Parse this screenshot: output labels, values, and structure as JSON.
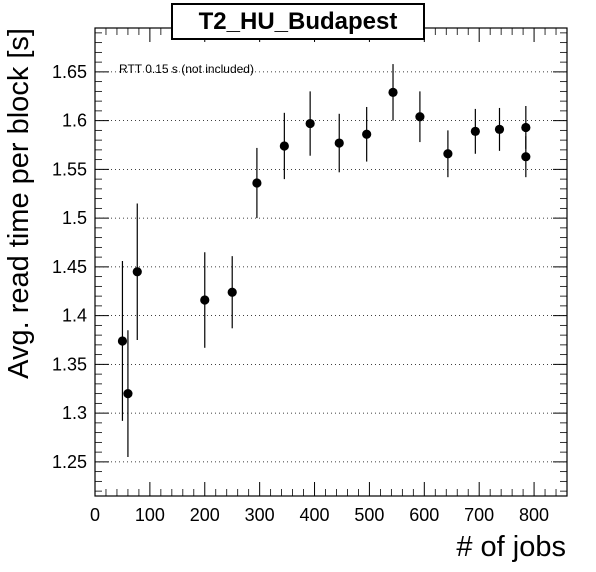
{
  "chart_data": {
    "type": "scatter",
    "title": "T2_HU_Budapest",
    "xlabel": "# of jobs",
    "ylabel": "Avg. read time per block [s]",
    "annotation": "RTT 0.15 s (not included)",
    "xlim": [
      0,
      860
    ],
    "ylim": [
      1.215,
      1.695
    ],
    "x_ticks": [
      0,
      100,
      200,
      300,
      400,
      500,
      600,
      700,
      800
    ],
    "y_ticks": [
      1.25,
      1.3,
      1.35,
      1.4,
      1.45,
      1.5,
      1.55,
      1.6,
      1.65
    ],
    "y_tick_labels": [
      "1.25",
      "1.3",
      "1.35",
      "1.4",
      "1.45",
      "1.5",
      "1.55",
      "1.6",
      "1.65"
    ],
    "grid": {
      "x": false,
      "y": true,
      "style": "dotted"
    },
    "points": [
      {
        "x": 50,
        "y": 1.374,
        "err": 0.082
      },
      {
        "x": 60,
        "y": 1.32,
        "err": 0.065
      },
      {
        "x": 77,
        "y": 1.445,
        "err": 0.07
      },
      {
        "x": 200,
        "y": 1.416,
        "err": 0.049
      },
      {
        "x": 250,
        "y": 1.424,
        "err": 0.037
      },
      {
        "x": 295,
        "y": 1.536,
        "err": 0.036
      },
      {
        "x": 345,
        "y": 1.574,
        "err": 0.034
      },
      {
        "x": 392,
        "y": 1.597,
        "err": 0.033
      },
      {
        "x": 445,
        "y": 1.577,
        "err": 0.03
      },
      {
        "x": 495,
        "y": 1.586,
        "err": 0.028
      },
      {
        "x": 543,
        "y": 1.629,
        "err": 0.029
      },
      {
        "x": 592,
        "y": 1.604,
        "err": 0.026
      },
      {
        "x": 643,
        "y": 1.566,
        "err": 0.024
      },
      {
        "x": 693,
        "y": 1.589,
        "err": 0.023
      },
      {
        "x": 737,
        "y": 1.591,
        "err": 0.022
      },
      {
        "x": 785,
        "y": 1.593,
        "err": 0.022
      },
      {
        "x": 785,
        "y": 1.563,
        "err": 0.021
      }
    ]
  }
}
